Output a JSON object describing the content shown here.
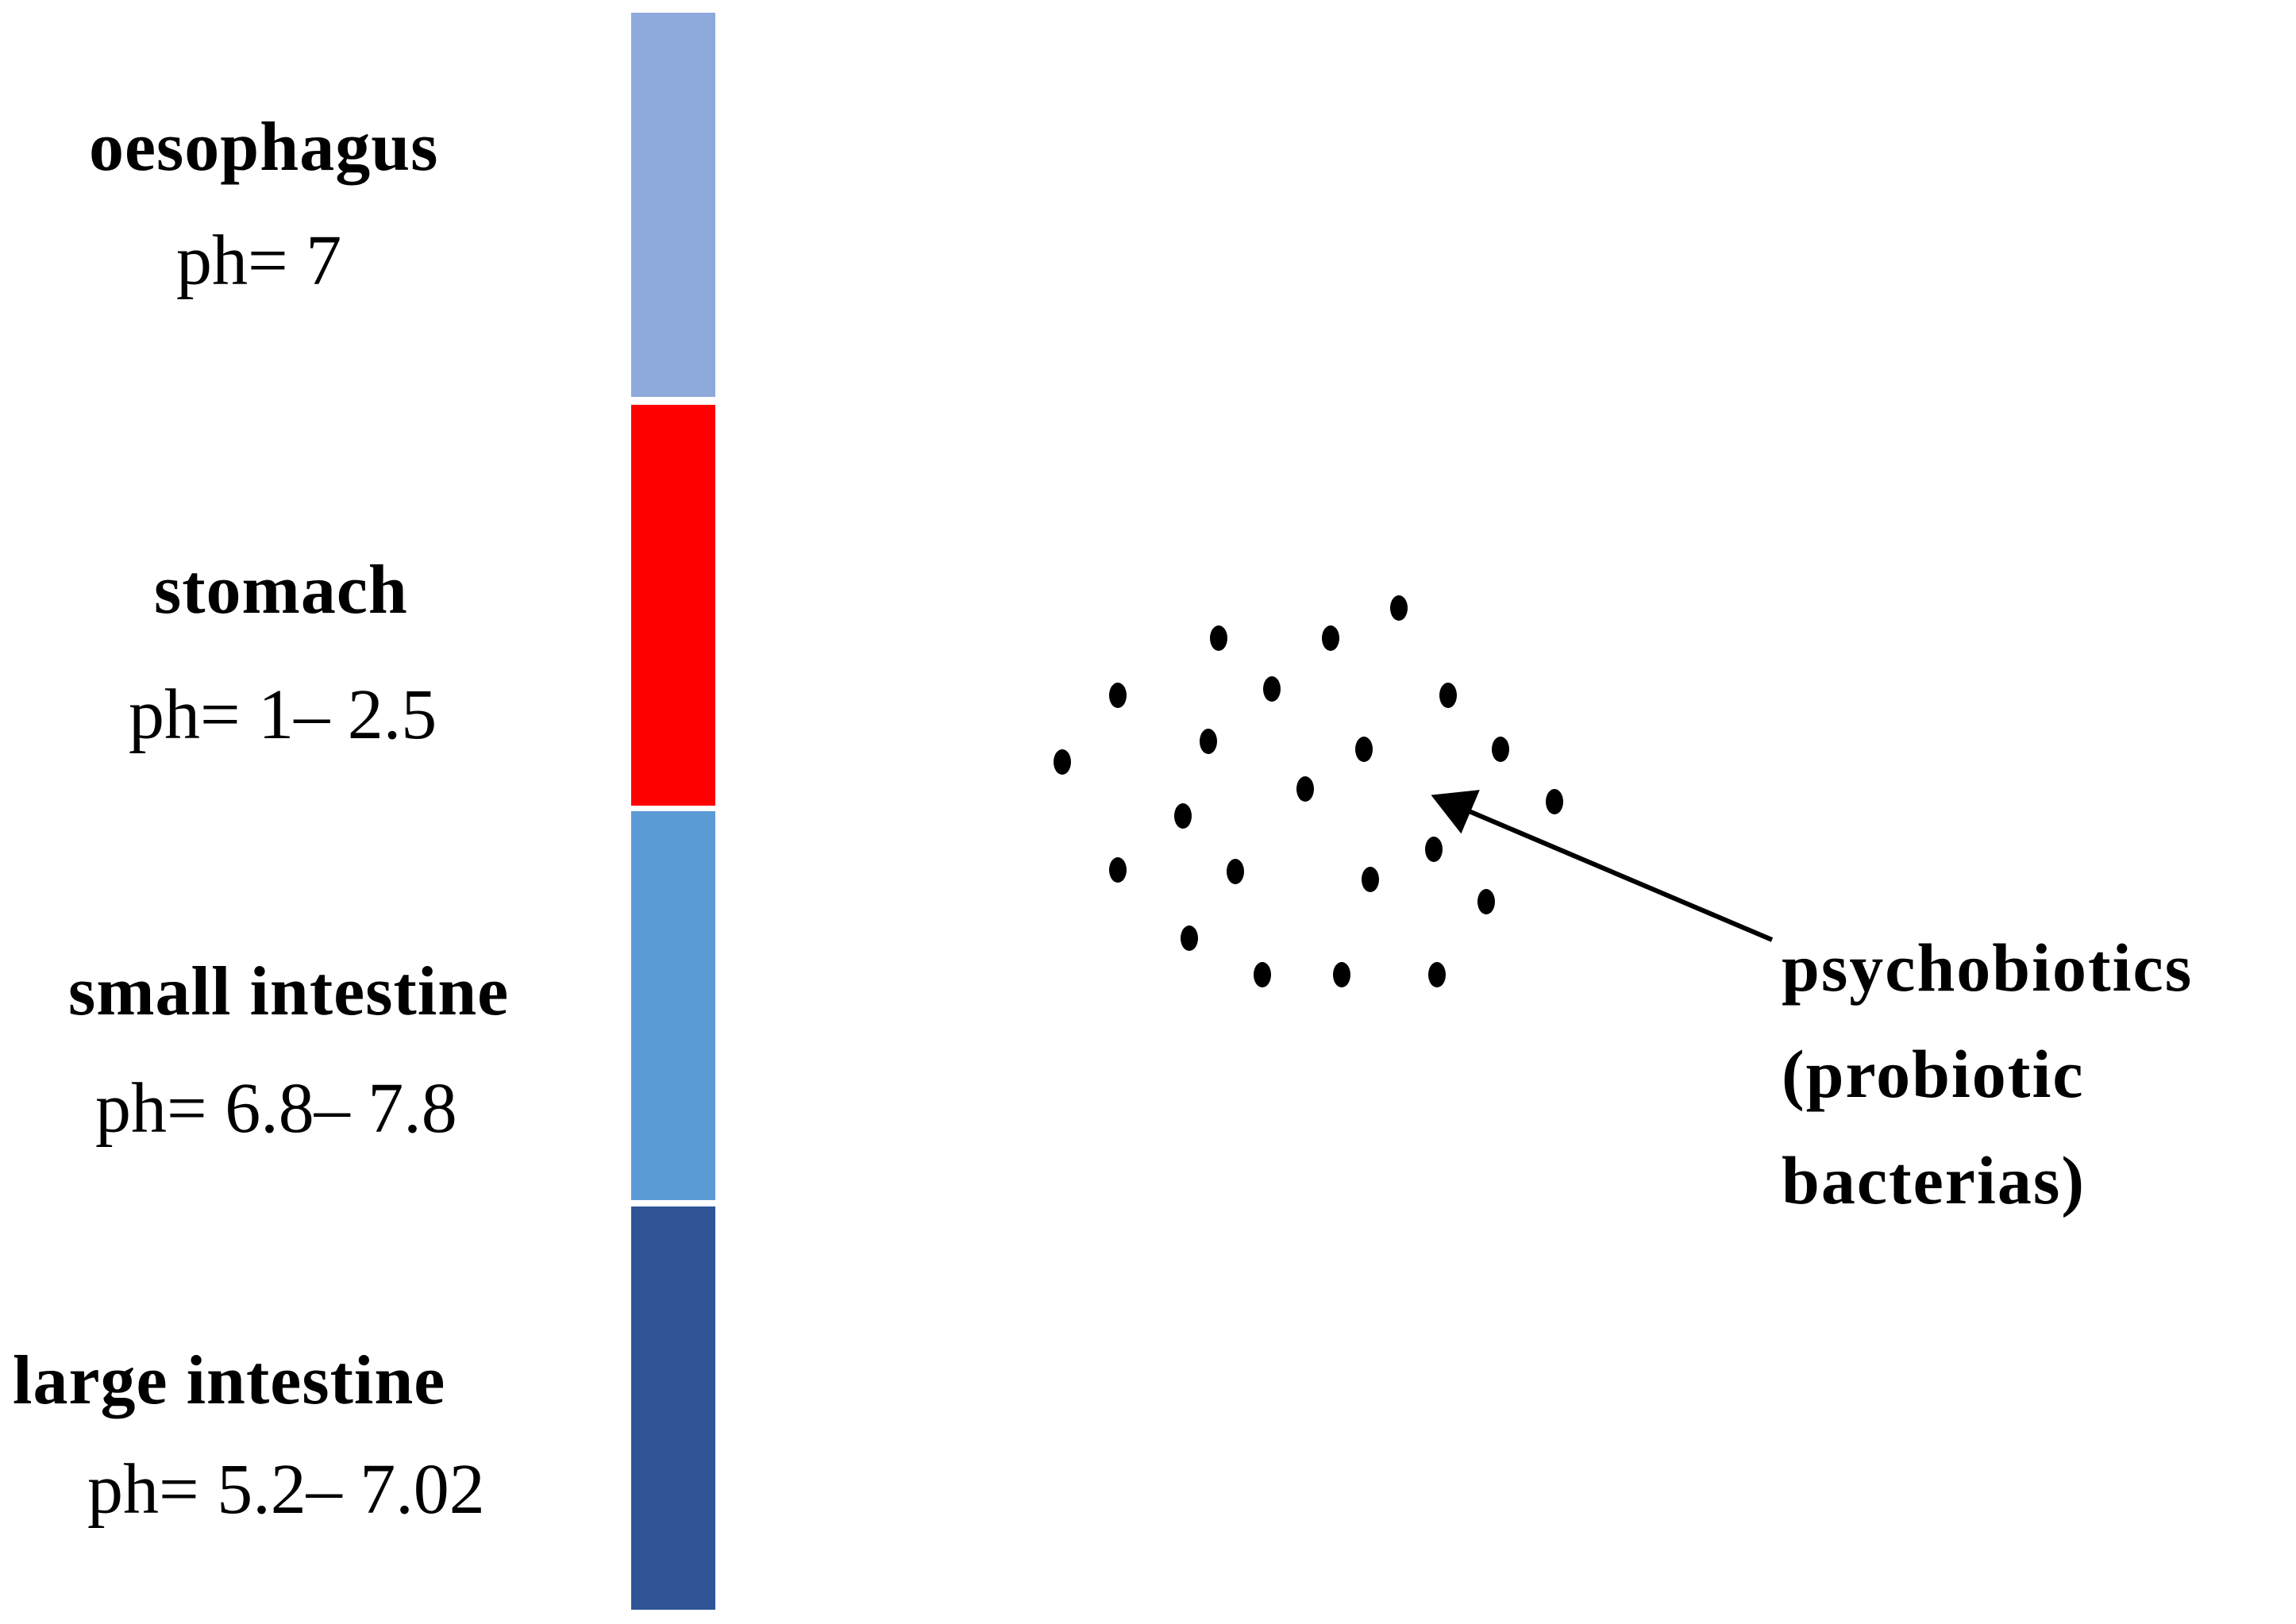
{
  "segments": [
    {
      "name": "oesophagus",
      "ph": "ph= 7",
      "color": "#8EA9DB"
    },
    {
      "name": "stomach",
      "ph": "ph= 1– 2.5",
      "color": "#FF0000"
    },
    {
      "name": "small intestine",
      "ph": "ph= 6.8– 7.8",
      "color": "#5B9BD5"
    },
    {
      "name": "large intestine",
      "ph": "ph= 5.2– 7.02",
      "color": "#2F5597"
    }
  ],
  "bacteria_label": {
    "line1": "psychobiotics",
    "line2": "(probiotic",
    "line3": "bacterias)"
  },
  "dot_color": "#000000",
  "arrow_color": "#000000"
}
